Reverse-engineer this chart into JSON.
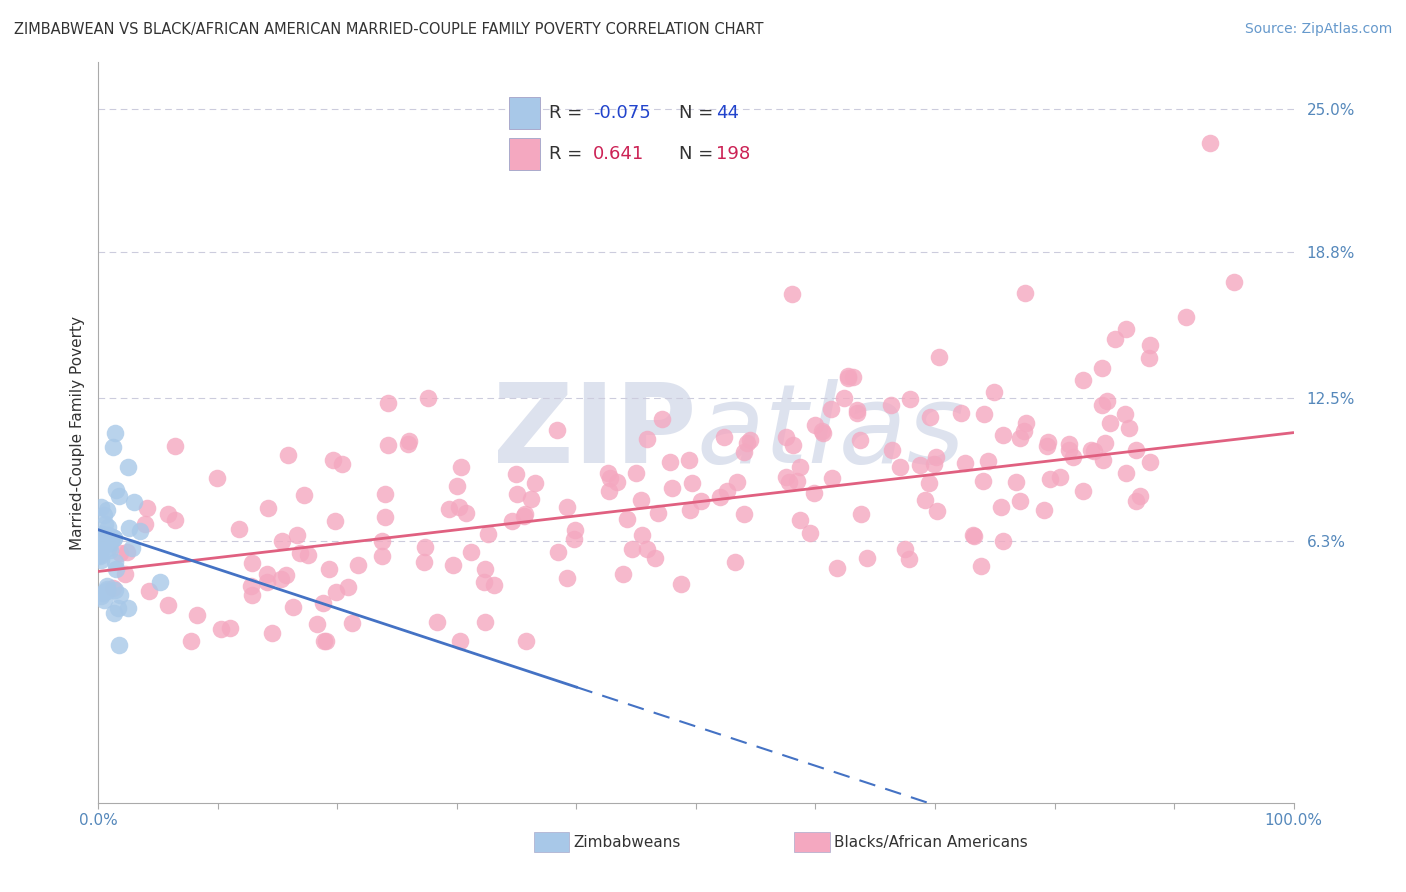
{
  "title": "ZIMBABWEAN VS BLACK/AFRICAN AMERICAN MARRIED-COUPLE FAMILY POVERTY CORRELATION CHART",
  "source": "Source: ZipAtlas.com",
  "ylabel": "Married-Couple Family Poverty",
  "xlim": [
    0,
    100
  ],
  "ylim": [
    -5,
    27
  ],
  "ytick_vals": [
    6.3,
    12.5,
    18.8,
    25.0
  ],
  "ytick_labels": [
    "6.3%",
    "12.5%",
    "18.8%",
    "25.0%"
  ],
  "xtick_vals": [
    0,
    10,
    20,
    30,
    40,
    50,
    60,
    70,
    80,
    90,
    100
  ],
  "xtick_edge_labels": [
    "0.0%",
    "100.0%"
  ],
  "blue_scatter_color": "#a8c8e8",
  "pink_scatter_color": "#f4a8c0",
  "blue_line_color": "#4472c4",
  "pink_line_color": "#e06080",
  "grid_color": "#ccccdd",
  "watermark_color": "#dde2ee",
  "bg_color": "#ffffff",
  "tick_color": "#5588bb",
  "title_color": "#333333",
  "source_color": "#6699cc",
  "ylabel_color": "#333333",
  "legend_border_color": "#aaaacc",
  "legend_blue_R_color": "#2244cc",
  "legend_pink_R_color": "#cc2255",
  "legend_N_color_blue": "#2244cc",
  "legend_N_color_pink": "#cc2255",
  "blue_R": -0.075,
  "blue_N": 44,
  "pink_R": 0.641,
  "pink_N": 198,
  "pink_line_start_x": 0,
  "pink_line_end_x": 100,
  "pink_line_start_y": 5.0,
  "pink_line_end_y": 11.0,
  "blue_line_start_x": 0,
  "blue_line_end_x": 40,
  "blue_line_start_y": 6.8,
  "blue_line_end_y": 0.0,
  "blue_dash_start_x": 40,
  "blue_dash_end_x": 100
}
